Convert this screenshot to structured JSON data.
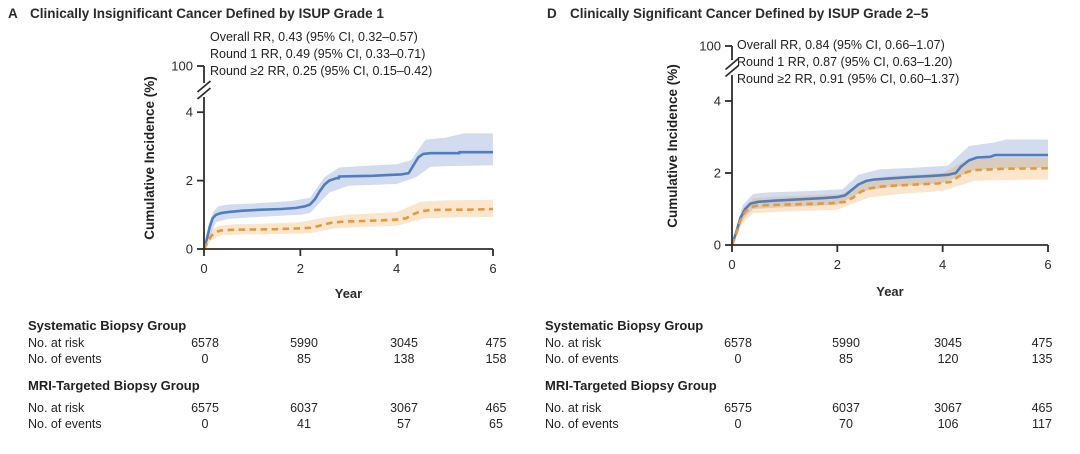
{
  "figure_type": "cumulative-incidence-curves-with-risk-tables",
  "chart_data": [
    {
      "type": "line",
      "panel_letter": "A",
      "title": "Clinically Insignificant Cancer Defined by ISUP Grade 1",
      "annotations": [
        "Overall RR, 0.43 (95% CI, 0.32–0.57)",
        "Round 1 RR, 0.49 (95% CI, 0.33–0.71)",
        "Round ≥2 RR, 0.25 (95% CI, 0.15–0.42)"
      ],
      "xlabel": "Year",
      "ylabel": "Cumulative Incidence (%)",
      "x_ticks": [
        0,
        2,
        4,
        6
      ],
      "y_ticks": [
        0,
        2,
        4
      ],
      "y_axis_break_top_label": "100",
      "xlim": [
        0,
        6
      ],
      "ylim_displayed": [
        0,
        4
      ],
      "series": [
        {
          "name": "Systematic Biopsy Group",
          "style": "solid",
          "color": "#4e7dc1",
          "band_color": "rgba(107,139,198,0.30)",
          "points": [
            [
              0,
              0
            ],
            [
              0.06,
              0.3
            ],
            [
              0.12,
              0.65
            ],
            [
              0.18,
              0.9
            ],
            [
              0.25,
              1.0
            ],
            [
              0.35,
              1.05
            ],
            [
              0.5,
              1.08
            ],
            [
              0.8,
              1.12
            ],
            [
              1.2,
              1.15
            ],
            [
              1.6,
              1.17
            ],
            [
              1.9,
              1.2
            ],
            [
              2.1,
              1.25
            ],
            [
              2.2,
              1.3
            ],
            [
              2.3,
              1.45
            ],
            [
              2.4,
              1.68
            ],
            [
              2.5,
              1.88
            ],
            [
              2.6,
              2.0
            ],
            [
              2.75,
              2.07
            ],
            [
              2.8,
              2.07
            ],
            [
              2.8,
              2.12
            ],
            [
              3.1,
              2.13
            ],
            [
              3.5,
              2.14
            ],
            [
              3.8,
              2.16
            ],
            [
              4.1,
              2.18
            ],
            [
              4.25,
              2.22
            ],
            [
              4.35,
              2.45
            ],
            [
              4.45,
              2.68
            ],
            [
              4.55,
              2.78
            ],
            [
              4.7,
              2.8
            ],
            [
              5.0,
              2.8
            ],
            [
              5.3,
              2.8
            ],
            [
              5.3,
              2.83
            ],
            [
              6,
              2.83
            ]
          ],
          "band_upper": [
            [
              0,
              0
            ],
            [
              0.1,
              0.75
            ],
            [
              0.2,
              1.1
            ],
            [
              0.3,
              1.25
            ],
            [
              0.5,
              1.3
            ],
            [
              1,
              1.33
            ],
            [
              1.8,
              1.4
            ],
            [
              2.2,
              1.5
            ],
            [
              2.5,
              2.1
            ],
            [
              2.8,
              2.38
            ],
            [
              3.2,
              2.42
            ],
            [
              4,
              2.48
            ],
            [
              4.3,
              2.6
            ],
            [
              4.6,
              3.2
            ],
            [
              5,
              3.25
            ],
            [
              5.4,
              3.38
            ],
            [
              6,
              3.38
            ]
          ],
          "band_lower": [
            [
              0,
              0
            ],
            [
              0.1,
              0.3
            ],
            [
              0.25,
              0.78
            ],
            [
              0.5,
              0.88
            ],
            [
              1,
              0.93
            ],
            [
              2,
              1.0
            ],
            [
              2.2,
              1.05
            ],
            [
              2.6,
              1.65
            ],
            [
              3,
              1.85
            ],
            [
              4,
              1.9
            ],
            [
              4.4,
              2.1
            ],
            [
              4.7,
              2.4
            ],
            [
              5,
              2.42
            ],
            [
              6,
              2.45
            ]
          ]
        },
        {
          "name": "MRI-Targeted Biopsy Group",
          "style": "dashed",
          "color": "#e6993c",
          "band_color": "rgba(235,167,72,0.28)",
          "points": [
            [
              0,
              0
            ],
            [
              0.08,
              0.2
            ],
            [
              0.15,
              0.38
            ],
            [
              0.25,
              0.5
            ],
            [
              0.35,
              0.54
            ],
            [
              0.6,
              0.56
            ],
            [
              1.0,
              0.57
            ],
            [
              1.5,
              0.58
            ],
            [
              1.9,
              0.6
            ],
            [
              2.2,
              0.62
            ],
            [
              2.35,
              0.66
            ],
            [
              2.5,
              0.72
            ],
            [
              2.65,
              0.77
            ],
            [
              2.9,
              0.8
            ],
            [
              3.3,
              0.82
            ],
            [
              3.7,
              0.84
            ],
            [
              4.0,
              0.86
            ],
            [
              4.2,
              0.9
            ],
            [
              4.35,
              1.02
            ],
            [
              4.5,
              1.1
            ],
            [
              4.7,
              1.14
            ],
            [
              5.1,
              1.15
            ],
            [
              5.5,
              1.15
            ],
            [
              6,
              1.17
            ]
          ],
          "band_upper": [
            [
              0,
              0
            ],
            [
              0.15,
              0.55
            ],
            [
              0.3,
              0.68
            ],
            [
              0.6,
              0.72
            ],
            [
              1.2,
              0.74
            ],
            [
              2,
              0.78
            ],
            [
              2.5,
              0.92
            ],
            [
              3,
              1.0
            ],
            [
              4,
              1.08
            ],
            [
              4.5,
              1.38
            ],
            [
              5,
              1.42
            ],
            [
              6,
              1.44
            ]
          ],
          "band_lower": [
            [
              0,
              0
            ],
            [
              0.15,
              0.25
            ],
            [
              0.35,
              0.4
            ],
            [
              0.7,
              0.42
            ],
            [
              1.5,
              0.44
            ],
            [
              2.2,
              0.46
            ],
            [
              2.7,
              0.6
            ],
            [
              3.2,
              0.64
            ],
            [
              4,
              0.68
            ],
            [
              4.6,
              0.9
            ],
            [
              5,
              0.92
            ],
            [
              6,
              0.94
            ]
          ]
        }
      ],
      "risk_table": {
        "groups": [
          {
            "name": "Systematic Biopsy Group",
            "rows": [
              {
                "label": "No. at risk",
                "values": [
                  "6578",
                  "5990",
                  "3045",
                  "475"
                ]
              },
              {
                "label": "No. of events",
                "values": [
                  "0",
                  "85",
                  "138",
                  "158"
                ]
              }
            ]
          },
          {
            "name": "MRI-Targeted Biopsy Group",
            "rows": [
              {
                "label": "No. at risk",
                "values": [
                  "6575",
                  "6037",
                  "3067",
                  "465"
                ]
              },
              {
                "label": "No. of events",
                "values": [
                  "0",
                  "41",
                  "57",
                  "65"
                ]
              }
            ]
          }
        ]
      }
    },
    {
      "type": "line",
      "panel_letter": "D",
      "title": "Clinically Significant Cancer Defined by ISUP Grade 2–5",
      "annotations": [
        "Overall RR, 0.84 (95% CI, 0.66–1.07)",
        "Round 1 RR, 0.87 (95% CI, 0.63–1.20)",
        "Round ≥2 RR, 0.91 (95% CI, 0.60–1.37)"
      ],
      "xlabel": "Year",
      "ylabel": "Cumulative Incidence (%)",
      "x_ticks": [
        0,
        2,
        4,
        6
      ],
      "y_ticks": [
        0,
        2,
        4
      ],
      "y_axis_break_top_label": "100",
      "xlim": [
        0,
        6
      ],
      "ylim_displayed": [
        0,
        4
      ],
      "series": [
        {
          "name": "Systematic Biopsy Group",
          "style": "solid",
          "color": "#4e7dc1",
          "band_color": "rgba(107,139,198,0.30)",
          "points": [
            [
              0,
              0
            ],
            [
              0.08,
              0.35
            ],
            [
              0.16,
              0.75
            ],
            [
              0.25,
              1.0
            ],
            [
              0.35,
              1.15
            ],
            [
              0.5,
              1.2
            ],
            [
              0.8,
              1.23
            ],
            [
              1.2,
              1.26
            ],
            [
              1.7,
              1.3
            ],
            [
              2.0,
              1.33
            ],
            [
              2.15,
              1.38
            ],
            [
              2.25,
              1.5
            ],
            [
              2.4,
              1.68
            ],
            [
              2.55,
              1.78
            ],
            [
              2.7,
              1.82
            ],
            [
              3.0,
              1.85
            ],
            [
              3.4,
              1.89
            ],
            [
              3.8,
              1.92
            ],
            [
              4.1,
              1.95
            ],
            [
              4.25,
              2.0
            ],
            [
              4.35,
              2.18
            ],
            [
              4.5,
              2.35
            ],
            [
              4.65,
              2.43
            ],
            [
              4.9,
              2.45
            ],
            [
              5.0,
              2.5
            ],
            [
              6,
              2.5
            ]
          ],
          "band_upper": [
            [
              0,
              0
            ],
            [
              0.2,
              1.1
            ],
            [
              0.4,
              1.42
            ],
            [
              0.7,
              1.46
            ],
            [
              1.5,
              1.5
            ],
            [
              2.1,
              1.55
            ],
            [
              2.4,
              1.95
            ],
            [
              2.8,
              2.1
            ],
            [
              3.5,
              2.15
            ],
            [
              4.1,
              2.2
            ],
            [
              4.5,
              2.75
            ],
            [
              5,
              2.85
            ],
            [
              5.2,
              2.93
            ],
            [
              6,
              2.93
            ]
          ],
          "band_lower": [
            [
              0,
              0
            ],
            [
              0.2,
              0.7
            ],
            [
              0.4,
              1.0
            ],
            [
              1,
              1.05
            ],
            [
              2,
              1.12
            ],
            [
              2.5,
              1.5
            ],
            [
              3,
              1.62
            ],
            [
              4,
              1.72
            ],
            [
              4.6,
              2.08
            ],
            [
              5,
              2.12
            ],
            [
              6,
              2.15
            ]
          ]
        },
        {
          "name": "MRI-Targeted Biopsy Group",
          "style": "dashed",
          "color": "#e6993c",
          "band_color": "rgba(235,167,72,0.28)",
          "points": [
            [
              0,
              0
            ],
            [
              0.08,
              0.3
            ],
            [
              0.16,
              0.68
            ],
            [
              0.25,
              0.92
            ],
            [
              0.35,
              1.05
            ],
            [
              0.5,
              1.1
            ],
            [
              0.9,
              1.12
            ],
            [
              1.4,
              1.14
            ],
            [
              1.9,
              1.16
            ],
            [
              2.15,
              1.2
            ],
            [
              2.3,
              1.32
            ],
            [
              2.45,
              1.48
            ],
            [
              2.6,
              1.57
            ],
            [
              2.8,
              1.62
            ],
            [
              3.1,
              1.65
            ],
            [
              3.5,
              1.68
            ],
            [
              3.9,
              1.71
            ],
            [
              4.15,
              1.75
            ],
            [
              4.3,
              1.9
            ],
            [
              4.45,
              2.02
            ],
            [
              4.6,
              2.08
            ],
            [
              4.9,
              2.1
            ],
            [
              5.2,
              2.12
            ],
            [
              6,
              2.13
            ]
          ],
          "band_upper": [
            [
              0,
              0
            ],
            [
              0.2,
              1.0
            ],
            [
              0.4,
              1.3
            ],
            [
              0.8,
              1.34
            ],
            [
              1.5,
              1.38
            ],
            [
              2.1,
              1.42
            ],
            [
              2.5,
              1.8
            ],
            [
              3,
              1.92
            ],
            [
              4,
              2.0
            ],
            [
              4.5,
              2.4
            ],
            [
              5,
              2.43
            ],
            [
              6,
              2.43
            ]
          ],
          "band_lower": [
            [
              0,
              0
            ],
            [
              0.2,
              0.6
            ],
            [
              0.4,
              0.88
            ],
            [
              1,
              0.93
            ],
            [
              2,
              0.98
            ],
            [
              2.6,
              1.32
            ],
            [
              3.2,
              1.42
            ],
            [
              4,
              1.5
            ],
            [
              4.6,
              1.78
            ],
            [
              5,
              1.8
            ],
            [
              6,
              1.82
            ]
          ]
        }
      ],
      "risk_table": {
        "groups": [
          {
            "name": "Systematic Biopsy Group",
            "rows": [
              {
                "label": "No. at risk",
                "values": [
                  "6578",
                  "5990",
                  "3045",
                  "475"
                ]
              },
              {
                "label": "No. of events",
                "values": [
                  "0",
                  "85",
                  "120",
                  "135"
                ]
              }
            ]
          },
          {
            "name": "MRI-Targeted Biopsy Group",
            "rows": [
              {
                "label": "No. at risk",
                "values": [
                  "6575",
                  "6037",
                  "3067",
                  "465"
                ]
              },
              {
                "label": "No. of events",
                "values": [
                  "0",
                  "70",
                  "106",
                  "117"
                ]
              }
            ]
          }
        ]
      }
    }
  ],
  "colors": {
    "systematic_line": "#4e7dc1",
    "mri_targeted_line": "#e6993c",
    "axis": "#302e2c",
    "text": "#262422"
  }
}
